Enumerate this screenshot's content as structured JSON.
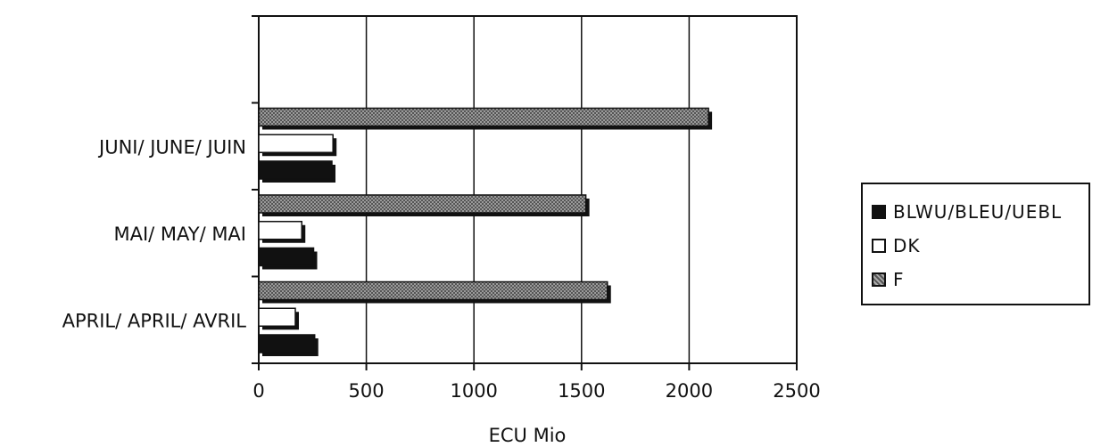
{
  "chart_data": {
    "type": "bar",
    "orientation": "horizontal",
    "title": "",
    "xlabel": "ECU Mio",
    "ylabel": "",
    "xlim": [
      0,
      2500
    ],
    "xticks": [
      "0",
      "500",
      "1000",
      "1500",
      "2000",
      "2500"
    ],
    "categories": [
      "JUNI/ JUNE/ JUIN",
      "MAI/ MAY/ MAI",
      "APRIL/ APRIL/ AVRIL"
    ],
    "series": [
      {
        "name": "BLWU/BLEU/UEBL",
        "values": [
          340,
          255,
          260
        ],
        "color": "#111111"
      },
      {
        "name": "DK",
        "values": [
          345,
          200,
          170
        ],
        "color": "#ffffff"
      },
      {
        "name": "F",
        "values": [
          2090,
          1520,
          1620
        ],
        "color": "#8a8a8a"
      }
    ],
    "grid": true,
    "legend_position": "right"
  }
}
